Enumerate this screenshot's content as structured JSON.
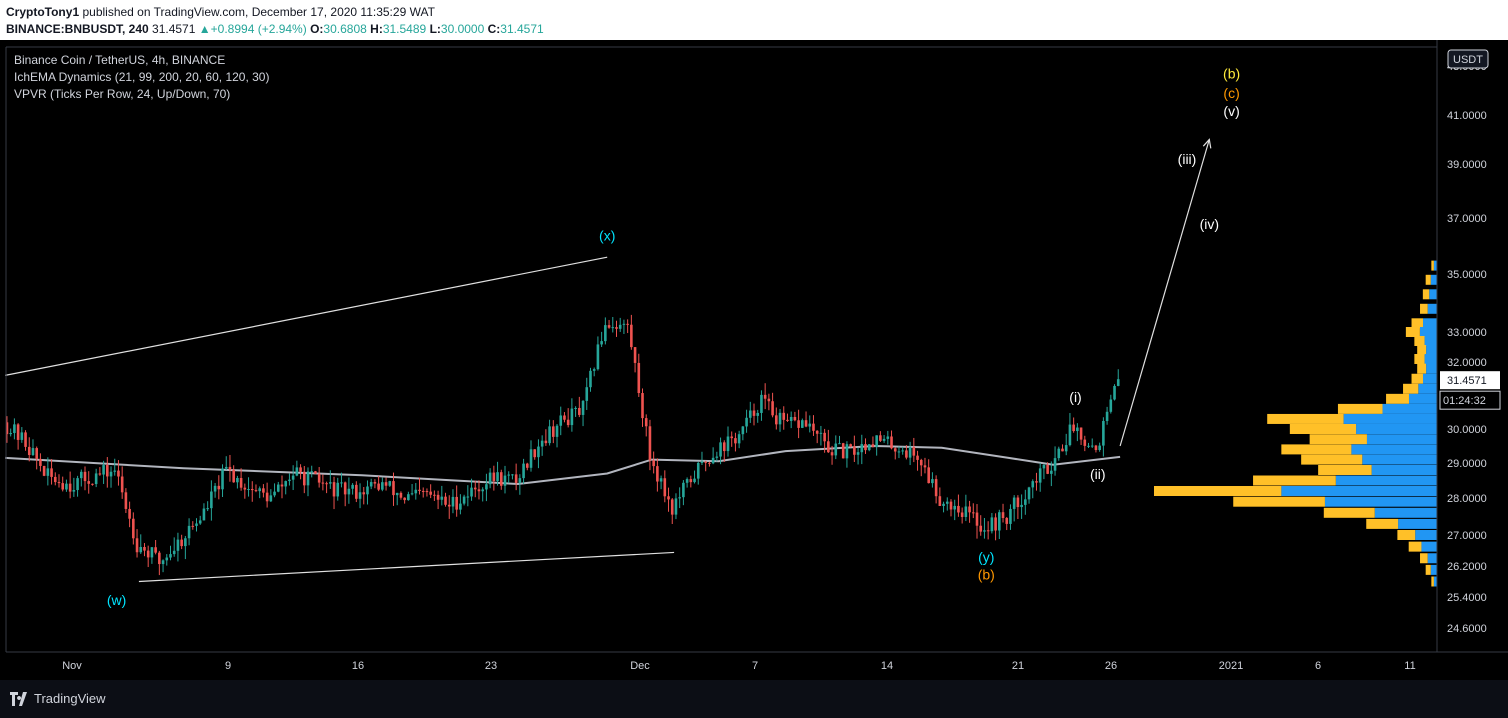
{
  "header": {
    "publisher": "CryptoTony1",
    "published_text": "published on TradingView.com, December 17, 2020 11:35:29 WAT",
    "symbol": "BINANCE:BNBUSDT, 240",
    "last": "31.4571",
    "change": "+0.8994 (+2.94%)",
    "open_label": "O:",
    "open": "30.6808",
    "high_label": "H:",
    "high": "31.5489",
    "low_label": "L:",
    "low": "30.0000",
    "close_label": "C:",
    "close": "31.4571"
  },
  "legend": {
    "title": "Binance Coin / TetherUS, 4h, BINANCE",
    "indicator1": "IchEMA Dynamics (21, 99, 200, 20, 60, 120, 30)",
    "indicator2": "VPVR (Ticks Per Row, 24, Up/Down, 70)"
  },
  "footer": {
    "brand": "TradingView"
  },
  "colors": {
    "up": "#26a69a",
    "down": "#ef5350",
    "ema": "#b2b5be",
    "cyan": "#00e5ff",
    "orange": "#ff9800",
    "yellow": "#ffeb3b",
    "vp_up": "#2196f3",
    "vp_down": "#ffc028",
    "white": "#ffffff"
  },
  "chart_data": {
    "type": "candlestick",
    "currency": "USDT",
    "last_price_label": "31.4571",
    "countdown_label": "01:24:32",
    "x_ticks": [
      "Nov",
      "9",
      "16",
      "23",
      "Dec",
      "7",
      "14",
      "21",
      "26",
      "2021",
      "6",
      "11"
    ],
    "y_ticks": [
      "41.0000",
      "39.0000",
      "37.0000",
      "35.0000",
      "33.0000",
      "32.0000",
      "30.0000",
      "29.0000",
      "28.0000",
      "27.0000",
      "26.2000",
      "25.4000",
      "24.6000"
    ],
    "y_top_partial": "43.0000",
    "close_path": [
      [
        "2020-10-28",
        30.2
      ],
      [
        "2020-10-29",
        29.6
      ],
      [
        "2020-10-30",
        28.6
      ],
      [
        "2020-10-31",
        28.4
      ],
      [
        "2020-11-01",
        28.6
      ],
      [
        "2020-11-02",
        28.8
      ],
      [
        "2020-11-03",
        26.8
      ],
      [
        "2020-11-04",
        26.3
      ],
      [
        "2020-11-05",
        26.9
      ],
      [
        "2020-11-06",
        27.6
      ],
      [
        "2020-11-07",
        28.8
      ],
      [
        "2020-11-08",
        28.3
      ],
      [
        "2020-11-09",
        28.0
      ],
      [
        "2020-11-10",
        28.7
      ],
      [
        "2020-11-11",
        28.5
      ],
      [
        "2020-11-12",
        28.2
      ],
      [
        "2020-11-13",
        28.2
      ],
      [
        "2020-11-14",
        28.4
      ],
      [
        "2020-11-15",
        28.0
      ],
      [
        "2020-11-16",
        28.1
      ],
      [
        "2020-11-17",
        27.8
      ],
      [
        "2020-11-18",
        28.2
      ],
      [
        "2020-11-19",
        28.6
      ],
      [
        "2020-11-20",
        28.5
      ],
      [
        "2020-11-21",
        29.6
      ],
      [
        "2020-11-22",
        30.2
      ],
      [
        "2020-11-23",
        30.6
      ],
      [
        "2020-11-24",
        33.3
      ],
      [
        "2020-11-25",
        33.2
      ],
      [
        "2020-11-26",
        29.2
      ],
      [
        "2020-11-27",
        27.7
      ],
      [
        "2020-11-28",
        28.7
      ],
      [
        "2020-11-29",
        29.4
      ],
      [
        "2020-11-30",
        29.8
      ],
      [
        "2020-12-01",
        30.9
      ],
      [
        "2020-12-02",
        30.1
      ],
      [
        "2020-12-03",
        30.2
      ],
      [
        "2020-12-04",
        29.4
      ],
      [
        "2020-12-05",
        29.3
      ],
      [
        "2020-12-06",
        29.7
      ],
      [
        "2020-12-07",
        29.5
      ],
      [
        "2020-12-08",
        29.2
      ],
      [
        "2020-12-09",
        28.0
      ],
      [
        "2020-12-10",
        27.7
      ],
      [
        "2020-12-11",
        27.2
      ],
      [
        "2020-12-12",
        27.5
      ],
      [
        "2020-12-13",
        28.3
      ],
      [
        "2020-12-14",
        29.0
      ],
      [
        "2020-12-15",
        30.1
      ],
      [
        "2020-12-16",
        29.4
      ],
      [
        "2020-12-17",
        31.4571
      ]
    ],
    "ema": [
      [
        "2020-10-28",
        29.15
      ],
      [
        "2020-11-05",
        28.85
      ],
      [
        "2020-11-13",
        28.65
      ],
      [
        "2020-11-20",
        28.4
      ],
      [
        "2020-11-24",
        28.7
      ],
      [
        "2020-11-26",
        29.1
      ],
      [
        "2020-11-29",
        29.05
      ],
      [
        "2020-12-02",
        29.35
      ],
      [
        "2020-12-06",
        29.5
      ],
      [
        "2020-12-09",
        29.45
      ],
      [
        "2020-12-12",
        29.15
      ],
      [
        "2020-12-14",
        28.95
      ],
      [
        "2020-12-17",
        29.18
      ]
    ],
    "trendlines": [
      {
        "from": [
          "2020-10-28",
          31.6
        ],
        "to": [
          "2020-11-24",
          35.6
        ]
      },
      {
        "from": [
          "2020-11-03",
          25.8
        ],
        "to": [
          "2020-11-27",
          26.55
        ]
      },
      {
        "from": [
          "2020-12-17",
          29.5
        ],
        "to": [
          "2020-12-21",
          40.0
        ],
        "arrow": true
      }
    ],
    "wave_labels": [
      {
        "text": "(w)",
        "x": "2020-11-02",
        "y": 25.2,
        "color": "cyan"
      },
      {
        "text": "(x)",
        "x": "2020-11-24",
        "y": 36.2,
        "color": "cyan"
      },
      {
        "text": "(y)",
        "x": "2020-12-11",
        "y": 26.3,
        "color": "cyan"
      },
      {
        "text": "(b)",
        "x": "2020-12-11",
        "y": 25.85,
        "color": "orange"
      },
      {
        "text": "(i)",
        "x": "2020-12-15",
        "y": 30.8,
        "color": "white"
      },
      {
        "text": "(ii)",
        "x": "2020-12-16",
        "y": 28.55,
        "color": "white"
      },
      {
        "text": "(iii)",
        "x": "2020-12-20",
        "y": 39.0,
        "color": "white"
      },
      {
        "text": "(iv)",
        "x": "2020-12-21",
        "y": 36.6,
        "color": "white"
      },
      {
        "text": "(b)",
        "x": "2020-12-22",
        "y": 42.5,
        "color": "yellow"
      },
      {
        "text": "(c)",
        "x": "2020-12-22",
        "y": 41.7,
        "color": "orange"
      },
      {
        "text": "(v)",
        "x": "2020-12-22",
        "y": 40.95,
        "color": "white"
      }
    ],
    "volume_profile": [
      [
        35.3,
        0.02
      ],
      [
        34.8,
        0.04
      ],
      [
        34.3,
        0.05
      ],
      [
        33.8,
        0.06
      ],
      [
        33.3,
        0.09
      ],
      [
        33.0,
        0.11
      ],
      [
        32.7,
        0.08
      ],
      [
        32.4,
        0.07
      ],
      [
        32.1,
        0.08
      ],
      [
        31.8,
        0.07
      ],
      [
        31.5,
        0.09
      ],
      [
        31.2,
        0.12
      ],
      [
        30.9,
        0.18
      ],
      [
        30.6,
        0.35
      ],
      [
        30.3,
        0.6
      ],
      [
        30.0,
        0.52
      ],
      [
        29.7,
        0.45
      ],
      [
        29.4,
        0.55
      ],
      [
        29.1,
        0.48
      ],
      [
        28.8,
        0.42
      ],
      [
        28.5,
        0.65
      ],
      [
        28.2,
        1.0
      ],
      [
        27.9,
        0.72
      ],
      [
        27.6,
        0.4
      ],
      [
        27.3,
        0.25
      ],
      [
        27.0,
        0.14
      ],
      [
        26.7,
        0.1
      ],
      [
        26.4,
        0.06
      ],
      [
        26.1,
        0.04
      ],
      [
        25.8,
        0.02
      ]
    ]
  }
}
